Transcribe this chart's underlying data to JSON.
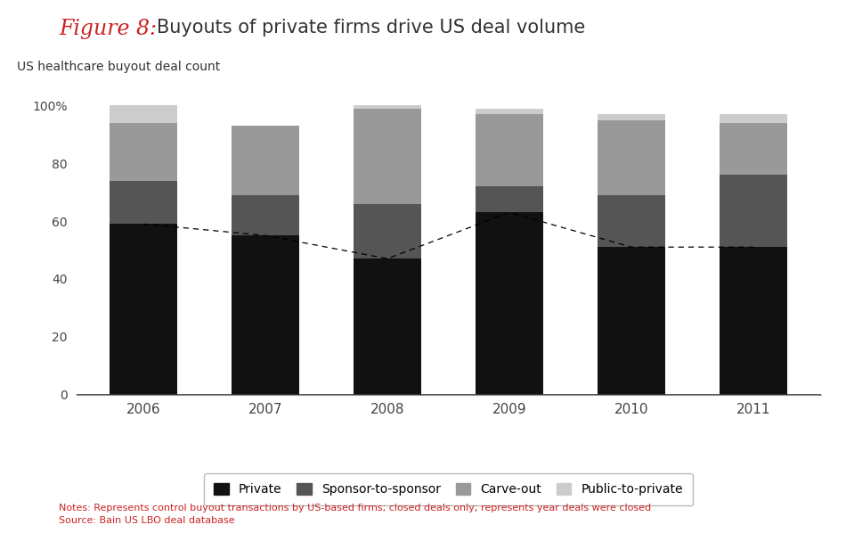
{
  "years": [
    "2006",
    "2007",
    "2008",
    "2009",
    "2010",
    "2011"
  ],
  "private": [
    59,
    55,
    47,
    63,
    51,
    51
  ],
  "sponsor_to_sponsor": [
    15,
    14,
    19,
    9,
    18,
    25
  ],
  "carve_out": [
    20,
    24,
    33,
    25,
    26,
    18
  ],
  "public_to_private": [
    6,
    0,
    1,
    2,
    2,
    3
  ],
  "colors": {
    "private": "#111111",
    "sponsor_to_sponsor": "#555555",
    "carve_out": "#999999",
    "public_to_private": "#cccccc"
  },
  "title_figure": "Figure 8:",
  "title_main": "Buyouts of private firms drive US deal volume",
  "ylabel": "US healthcare buyout deal count",
  "ylim": [
    0,
    107
  ],
  "yticks": [
    0,
    20,
    40,
    60,
    80,
    100
  ],
  "ytick_labels": [
    "0",
    "20",
    "40",
    "60",
    "80",
    "100%"
  ],
  "legend_labels": [
    "Private",
    "Sponsor-to-sponsor",
    "Carve-out",
    "Public-to-private"
  ],
  "note_line1": "Notes: Represents control buyout transactions by US-based firms; closed deals only; represents year deals were closed",
  "note_line2": "Source: Bain US LBO deal database",
  "bar_width": 0.55,
  "figure_color": "#cc2222",
  "title_color": "#333333",
  "note_color": "#cc2222"
}
